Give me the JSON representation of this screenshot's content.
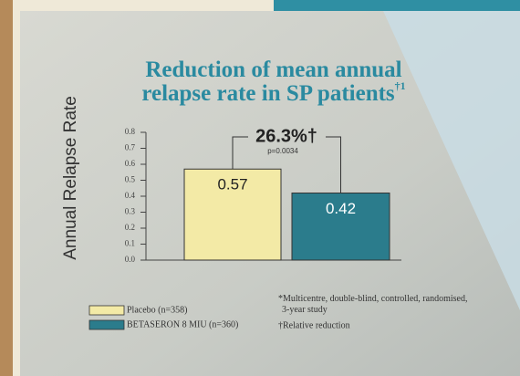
{
  "chart_data": {
    "type": "bar",
    "title": "Reduction of mean annual relapse rate in SP patients",
    "title_superscript": "†1",
    "ylabel": "Annual Relapse Rate",
    "series": [
      {
        "name": "Placebo (n=358)",
        "color": "#f3eaa6",
        "values": [
          0.57
        ],
        "value_labels": [
          "0.57"
        ]
      },
      {
        "name": "BETASERON 8 MIU (n=360)",
        "color": "#2b7c8c",
        "values": [
          0.42
        ],
        "value_labels": [
          "0.42"
        ]
      }
    ],
    "annotation": "26.3%†",
    "p_value": "p=0.0034",
    "footnotes": [
      "*Multicentre, double-blind, controlled, randomised, 3-year study",
      "†Relative reduction"
    ],
    "ylim": [
      0,
      0.8
    ],
    "yticks": [
      {
        "value": 0,
        "label": "0.0"
      },
      0.1,
      0.2,
      0.3,
      0.4,
      0.5,
      0.6,
      0.7,
      0.8
    ]
  }
}
